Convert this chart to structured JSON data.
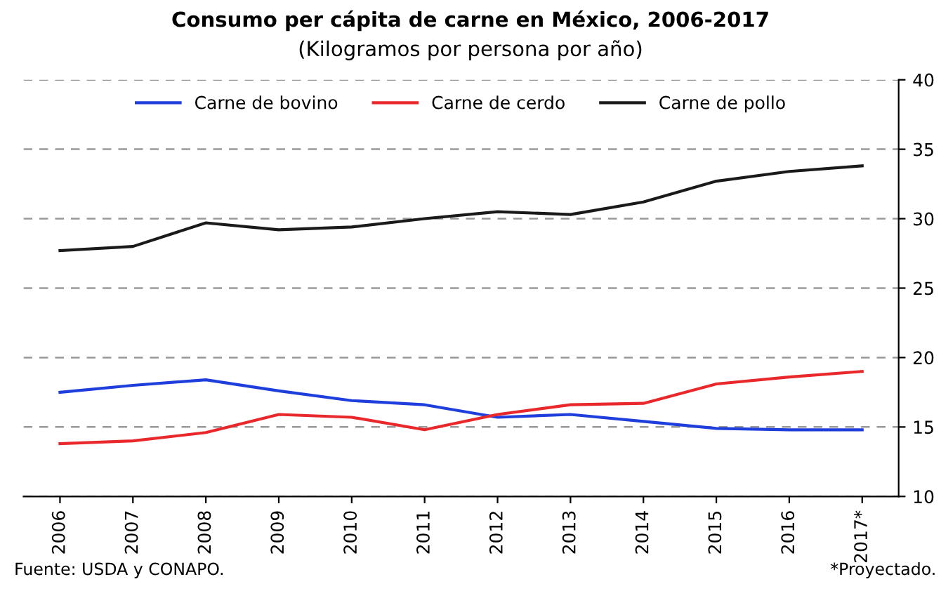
{
  "chart_data": {
    "type": "line",
    "title": "Consumo per cápita de carne en México, 2006-2017",
    "subtitle": "(Kilogramos por persona por año)",
    "categories": [
      "2006",
      "2007",
      "2008",
      "2009",
      "2010",
      "2011",
      "2012",
      "2013",
      "2014",
      "2015",
      "2016",
      "2017*"
    ],
    "series": [
      {
        "name": "Carne de bovino",
        "color": "#1f3fdc",
        "values": [
          17.5,
          18.0,
          18.4,
          17.6,
          16.9,
          16.6,
          15.7,
          15.9,
          15.4,
          14.9,
          14.8,
          14.8
        ]
      },
      {
        "name": "Carne de cerdo",
        "color": "#e8282a",
        "values": [
          13.8,
          14.0,
          14.6,
          15.9,
          15.7,
          14.8,
          15.9,
          16.6,
          16.7,
          18.1,
          18.6,
          19.0
        ]
      },
      {
        "name": "Carne de pollo",
        "color": "#1a1a1a",
        "values": [
          27.7,
          28.0,
          29.7,
          29.2,
          29.4,
          30.0,
          30.5,
          30.3,
          31.2,
          32.7,
          33.4,
          33.8
        ]
      }
    ],
    "ylim": [
      10,
      40
    ],
    "yticks": [
      10,
      15,
      20,
      25,
      30,
      35,
      40
    ],
    "grid": "y",
    "legend": "top",
    "marker": "none",
    "line_style": "solid",
    "annotations": [
      "Fuente: USDA y CONAPO.",
      "*Proyectado."
    ]
  }
}
